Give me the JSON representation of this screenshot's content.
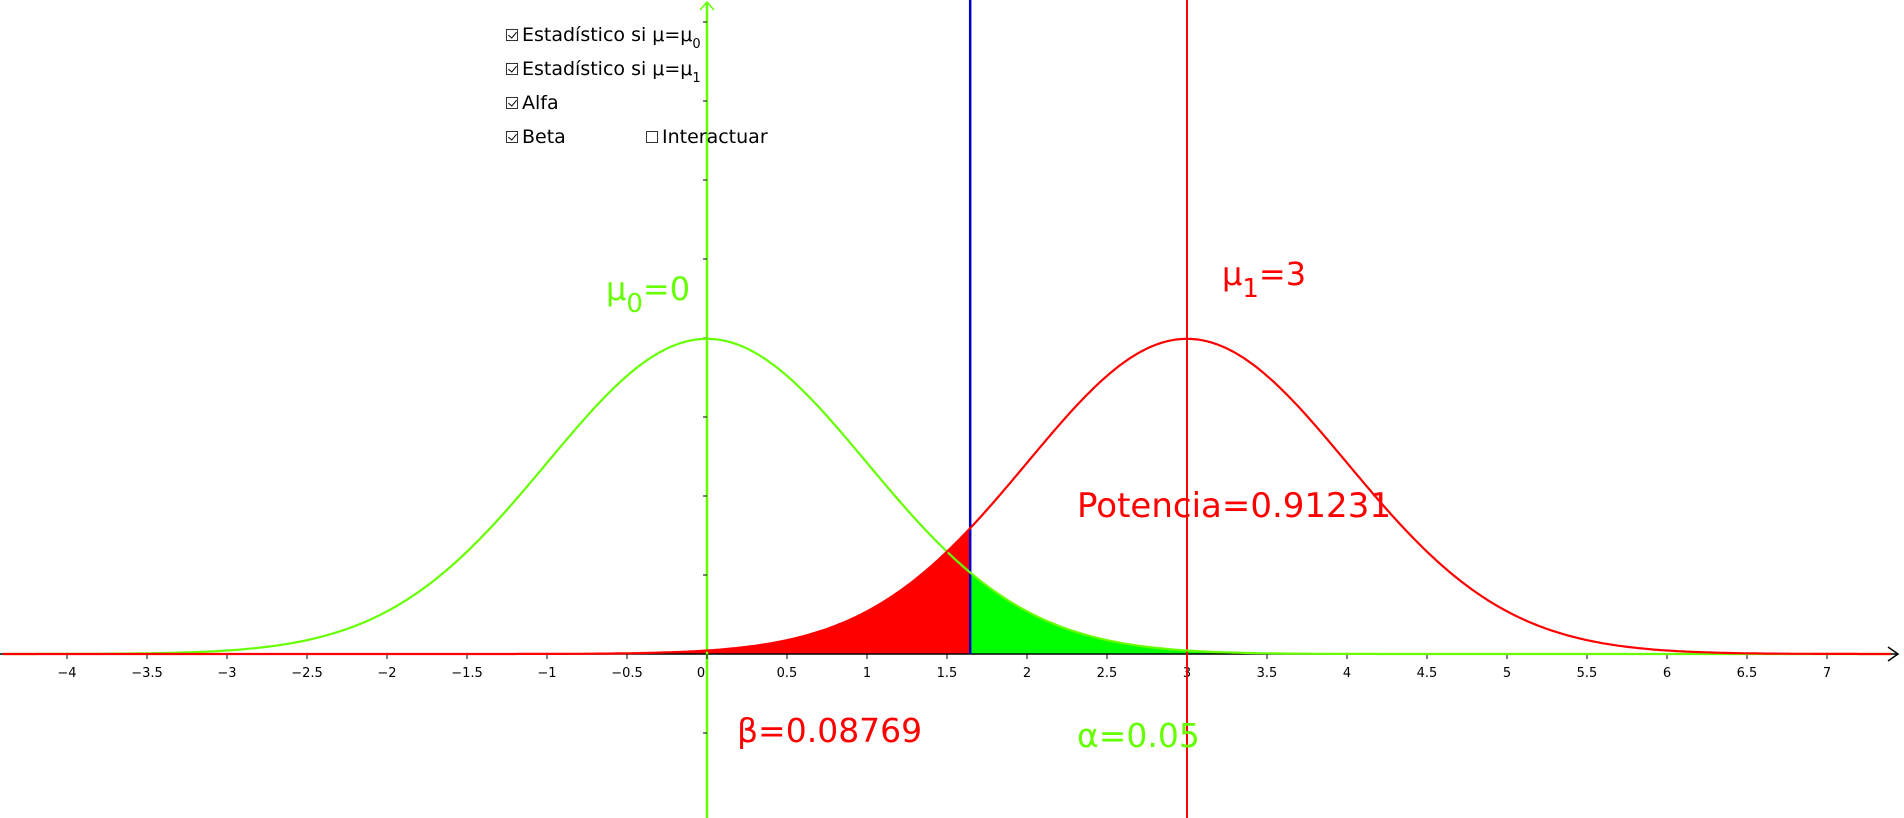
{
  "checkboxes": [
    {
      "id": "stat0",
      "label": "Estadístico si μ=μ",
      "sub": "0",
      "checked": true
    },
    {
      "id": "stat1",
      "label": "Estadístico si μ=μ",
      "sub": "1",
      "checked": true
    },
    {
      "id": "alfa",
      "label": "Alfa",
      "sub": "",
      "checked": true
    },
    {
      "id": "beta",
      "label": "Beta",
      "sub": "",
      "checked": true
    },
    {
      "id": "interactuar",
      "label": "Interactuar",
      "sub": "",
      "checked": false
    }
  ],
  "labels": {
    "mu0_main": "μ",
    "mu0_sub": "0",
    "mu0_rest": "=0",
    "mu1_main": "μ",
    "mu1_sub": "1",
    "mu1_rest": "=3",
    "potencia": "Potencia=0.91231",
    "beta": "β=0.08769",
    "alpha": "α=0.05"
  },
  "colors": {
    "h0": "#66ff00",
    "h1": "#ff0000",
    "critical": "#0000cc",
    "alpha_fill": "#00ff00",
    "beta_fill": "#ff0000",
    "axis": "#000000"
  },
  "chart_data": {
    "type": "area",
    "title": "",
    "xlabel": "",
    "ylabel": "",
    "xlim": [
      -4.4,
      7.4
    ],
    "x_ticks": [
      -4,
      -3.5,
      -3,
      -2.5,
      -2,
      -1.5,
      -1,
      -0.5,
      0,
      0.5,
      1,
      1.5,
      2,
      2.5,
      3,
      3.5,
      4,
      4.5,
      5,
      5.5,
      6,
      6.5,
      7
    ],
    "x_tick_labels": [
      "−4",
      "−3.5",
      "−3",
      "−2.5",
      "−2",
      "−1.5",
      "−1",
      "−0.5",
      "0",
      "0.5",
      "1",
      "1.5",
      "2",
      "2.5",
      "3",
      "3.5",
      "4",
      "4.5",
      "5",
      "5.5",
      "6",
      "6.5",
      "7"
    ],
    "series": [
      {
        "distribution": "normal",
        "mean": 0,
        "sd": 1
      },
      {
        "distribution": "normal",
        "mean": 3,
        "sd": 1
      }
    ],
    "critical_value": 1.645,
    "alpha": 0.05,
    "beta": 0.08769,
    "power": 0.91231,
    "grid": false
  }
}
